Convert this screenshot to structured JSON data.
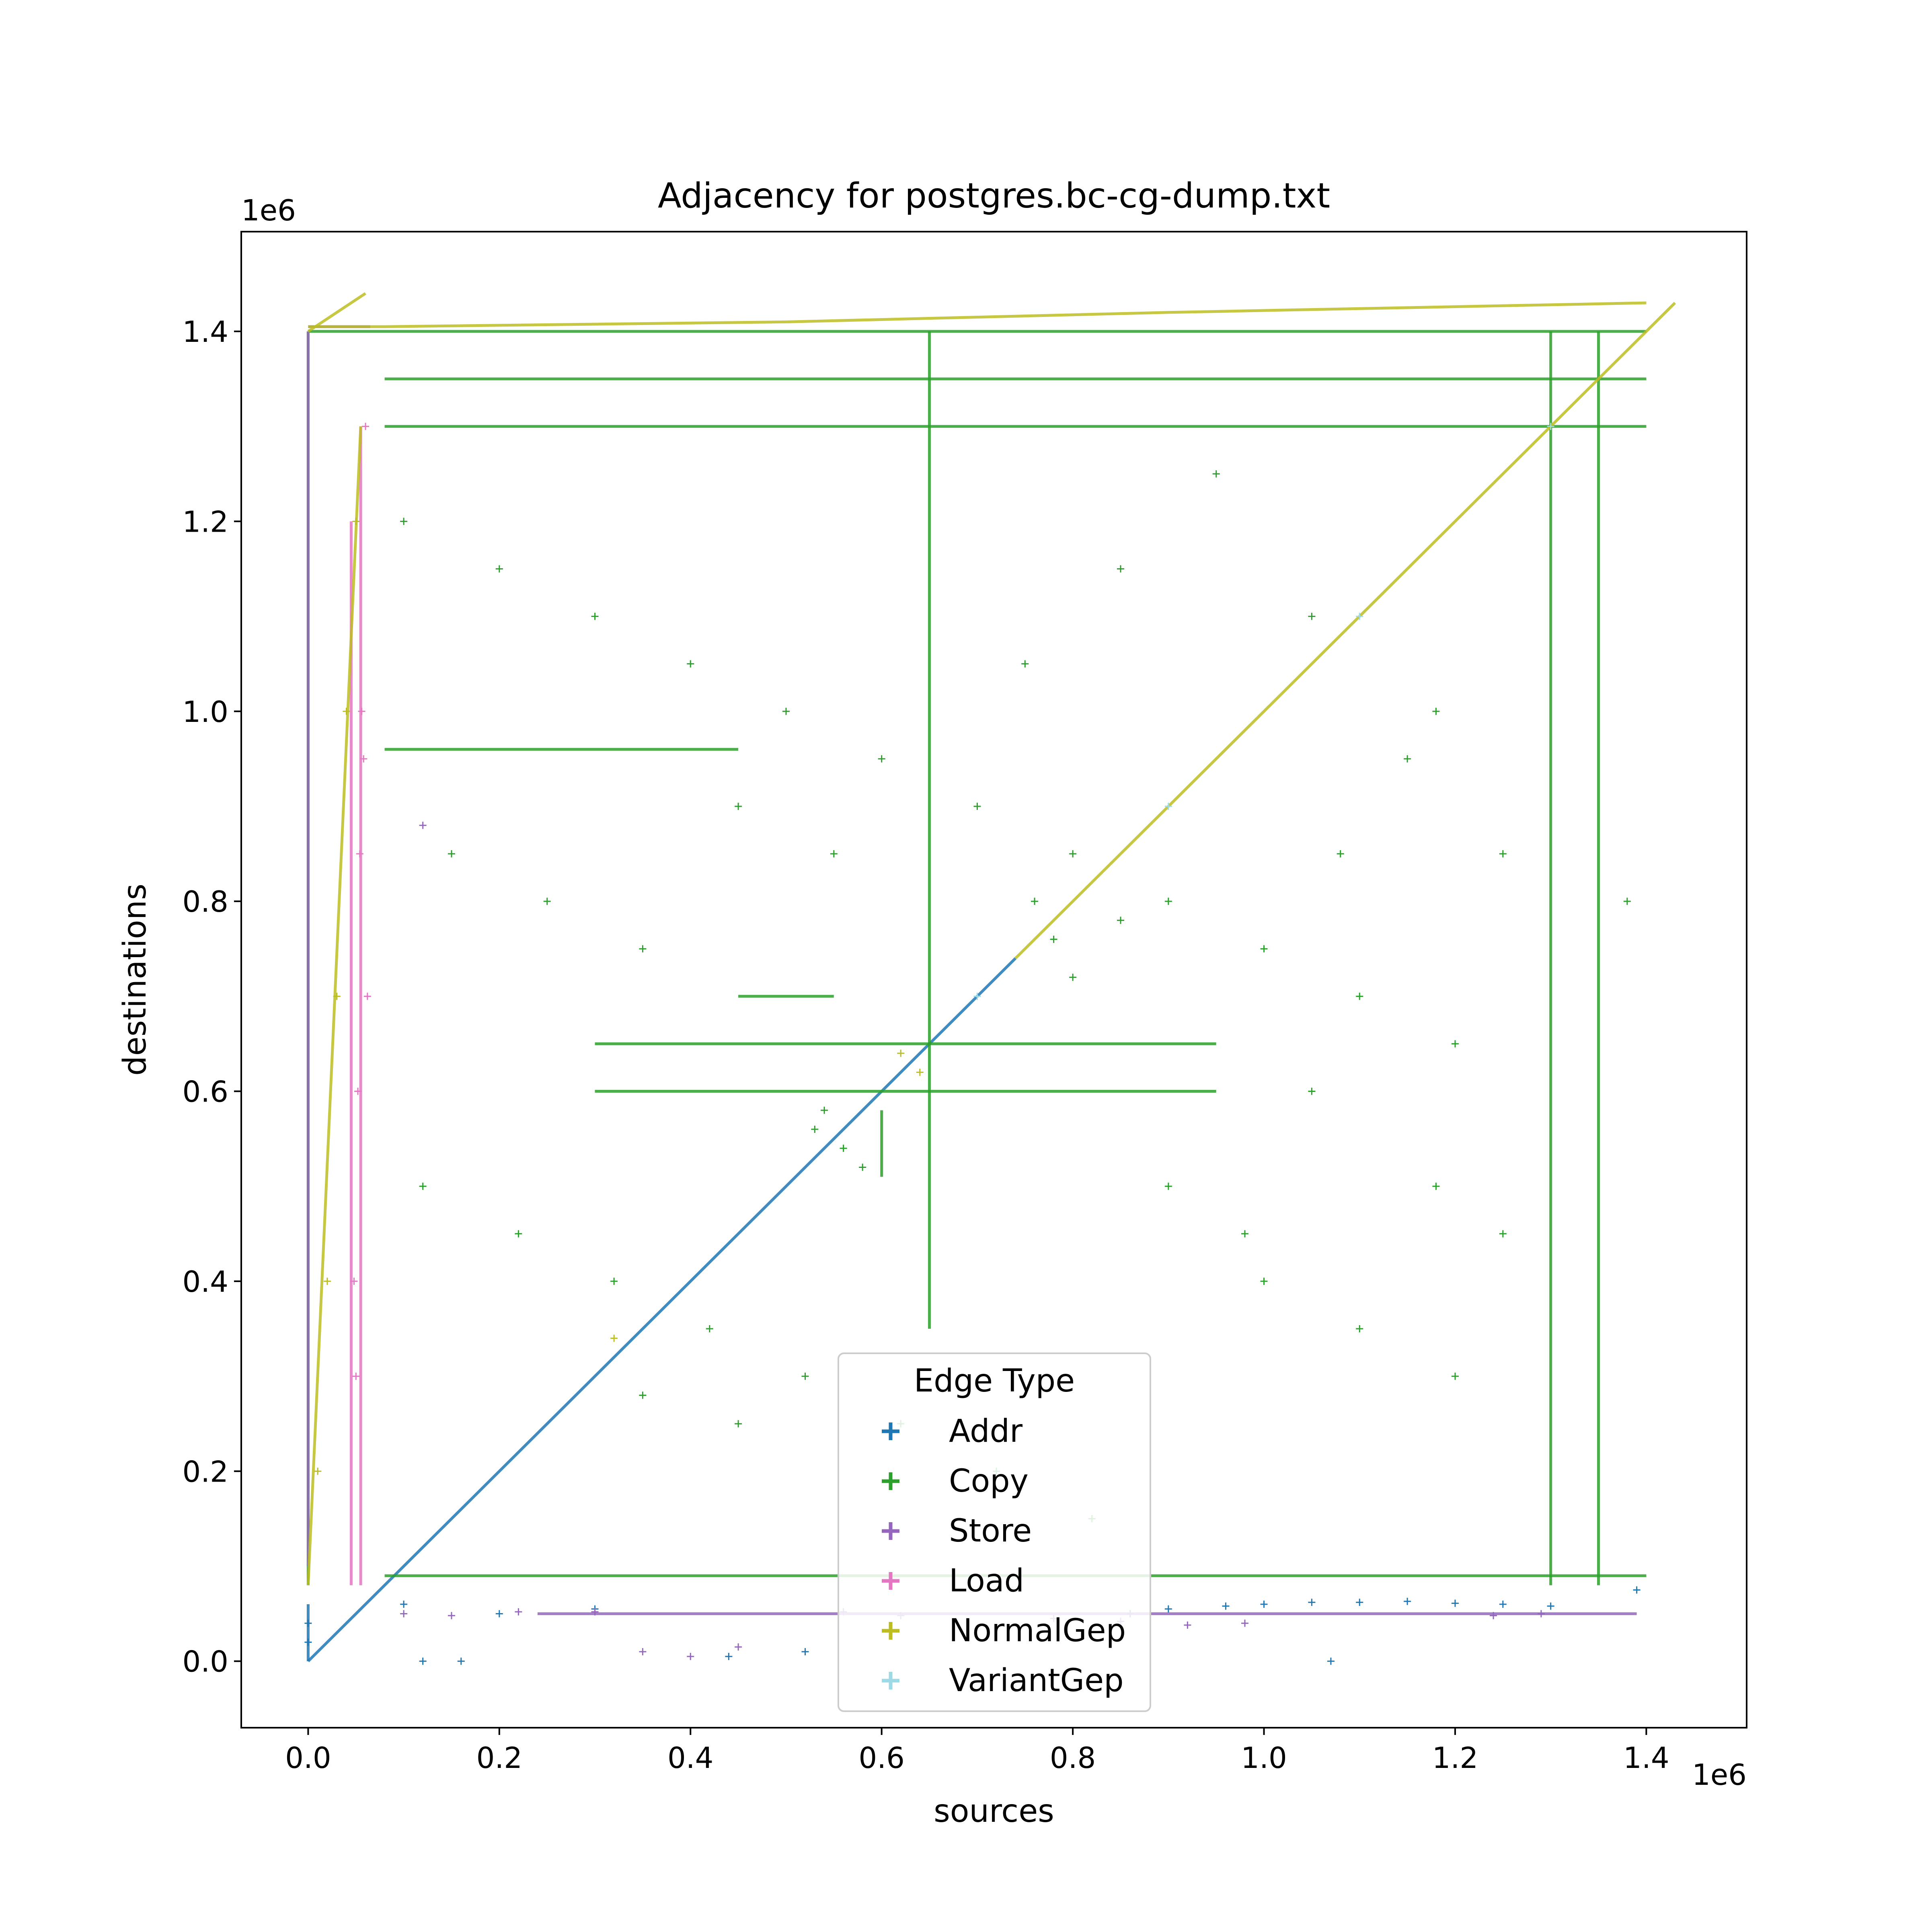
{
  "chart_data": {
    "type": "scatter",
    "title": "Adjacency for postgres.bc-cg-dump.txt",
    "xlabel": "sources",
    "ylabel": "destinations",
    "x_offset_label": "1e6",
    "y_offset_label": "1e6",
    "xlim": [
      -70000,
      1505000
    ],
    "ylim": [
      -70000,
      1505000
    ],
    "x_ticks": [
      0,
      200000,
      400000,
      600000,
      800000,
      1000000,
      1200000,
      1400000
    ],
    "y_ticks": [
      0,
      200000,
      400000,
      600000,
      800000,
      1000000,
      1200000,
      1400000
    ],
    "x_tick_labels": [
      "0.0",
      "0.2",
      "0.4",
      "0.6",
      "0.8",
      "1.0",
      "1.2",
      "1.4"
    ],
    "y_tick_labels": [
      "0.0",
      "0.2",
      "0.4",
      "0.6",
      "0.8",
      "1.0",
      "1.2",
      "1.4"
    ],
    "grid": false,
    "legend": {
      "title": "Edge Type",
      "placement": "lower-center",
      "entries": [
        "Addr",
        "Copy",
        "Store",
        "Load",
        "NormalGep",
        "VariantGep"
      ]
    },
    "series": [
      {
        "name": "Addr",
        "color": "#1f77b4",
        "lines": [
          [
            [
              0,
              0
            ],
            [
              740000,
              740000
            ]
          ],
          [
            [
              0,
              0
            ],
            [
              0,
              60000
            ]
          ]
        ],
        "points": [
          [
            0,
            20000
          ],
          [
            0,
            40000
          ],
          [
            100000,
            60000
          ],
          [
            200000,
            50000
          ],
          [
            300000,
            55000
          ],
          [
            120000,
            0
          ],
          [
            160000,
            0
          ],
          [
            440000,
            5000
          ],
          [
            520000,
            10000
          ],
          [
            1000000,
            60000
          ],
          [
            1050000,
            62000
          ],
          [
            1100000,
            62000
          ],
          [
            1150000,
            63000
          ],
          [
            1200000,
            61000
          ],
          [
            1250000,
            60000
          ],
          [
            1300000,
            58000
          ],
          [
            1390000,
            75000
          ],
          [
            900000,
            55000
          ],
          [
            960000,
            58000
          ],
          [
            1070000,
            0
          ],
          [
            860000,
            50000
          ]
        ]
      },
      {
        "name": "Copy",
        "color": "#2ca02c",
        "lines": [
          [
            [
              0,
              1400000
            ],
            [
              1400000,
              1400000
            ]
          ],
          [
            [
              80000,
              1350000
            ],
            [
              1400000,
              1350000
            ]
          ],
          [
            [
              80000,
              1300000
            ],
            [
              1400000,
              1300000
            ]
          ],
          [
            [
              300000,
              650000
            ],
            [
              950000,
              650000
            ]
          ],
          [
            [
              300000,
              600000
            ],
            [
              950000,
              600000
            ]
          ],
          [
            [
              1350000,
              80000
            ],
            [
              1350000,
              1400000
            ]
          ],
          [
            [
              1300000,
              80000
            ],
            [
              1300000,
              1400000
            ]
          ],
          [
            [
              650000,
              350000
            ],
            [
              650000,
              1400000
            ]
          ],
          [
            [
              80000,
              90000
            ],
            [
              1400000,
              90000
            ]
          ],
          [
            [
              0,
              80000
            ],
            [
              0,
              1400000
            ]
          ],
          [
            [
              80000,
              960000
            ],
            [
              450000,
              960000
            ]
          ],
          [
            [
              450000,
              700000
            ],
            [
              550000,
              700000
            ]
          ],
          [
            [
              600000,
              510000
            ],
            [
              600000,
              580000
            ]
          ]
        ],
        "points": [
          [
            100000,
            1200000
          ],
          [
            200000,
            1150000
          ],
          [
            300000,
            1100000
          ],
          [
            400000,
            1050000
          ],
          [
            500000,
            1000000
          ],
          [
            600000,
            950000
          ],
          [
            700000,
            900000
          ],
          [
            800000,
            850000
          ],
          [
            900000,
            800000
          ],
          [
            1000000,
            750000
          ],
          [
            1100000,
            700000
          ],
          [
            1200000,
            650000
          ],
          [
            120000,
            500000
          ],
          [
            220000,
            450000
          ],
          [
            320000,
            400000
          ],
          [
            420000,
            350000
          ],
          [
            520000,
            300000
          ],
          [
            620000,
            250000
          ],
          [
            720000,
            200000
          ],
          [
            820000,
            150000
          ],
          [
            150000,
            850000
          ],
          [
            250000,
            800000
          ],
          [
            350000,
            750000
          ],
          [
            450000,
            900000
          ],
          [
            550000,
            850000
          ],
          [
            750000,
            1050000
          ],
          [
            850000,
            1150000
          ],
          [
            950000,
            1250000
          ],
          [
            1050000,
            1100000
          ],
          [
            1150000,
            950000
          ],
          [
            1250000,
            850000
          ],
          [
            1380000,
            800000
          ],
          [
            780000,
            760000
          ],
          [
            800000,
            720000
          ],
          [
            850000,
            780000
          ],
          [
            760000,
            800000
          ],
          [
            530000,
            560000
          ],
          [
            560000,
            540000
          ],
          [
            540000,
            580000
          ],
          [
            580000,
            520000
          ],
          [
            350000,
            280000
          ],
          [
            450000,
            250000
          ],
          [
            1000000,
            400000
          ],
          [
            1100000,
            350000
          ],
          [
            1200000,
            300000
          ],
          [
            1250000,
            450000
          ],
          [
            1180000,
            500000
          ],
          [
            1050000,
            600000
          ],
          [
            900000,
            500000
          ],
          [
            980000,
            450000
          ],
          [
            1080000,
            850000
          ],
          [
            1180000,
            1000000
          ]
        ]
      },
      {
        "name": "Store",
        "color": "#9467bd",
        "lines": [
          [
            [
              0,
              1405000
            ],
            [
              65000,
              1405000
            ]
          ],
          [
            [
              0,
              100000
            ],
            [
              0,
              1400000
            ]
          ],
          [
            [
              240000,
              50000
            ],
            [
              1390000,
              50000
            ]
          ]
        ],
        "points": [
          [
            100000,
            50000
          ],
          [
            150000,
            48000
          ],
          [
            220000,
            52000
          ],
          [
            300000,
            52000
          ],
          [
            350000,
            10000
          ],
          [
            400000,
            5000
          ],
          [
            450000,
            15000
          ],
          [
            560000,
            52000
          ],
          [
            620000,
            48000
          ],
          [
            780000,
            45000
          ],
          [
            850000,
            42000
          ],
          [
            920000,
            38000
          ],
          [
            980000,
            40000
          ],
          [
            1240000,
            48000
          ],
          [
            1290000,
            50000
          ],
          [
            120000,
            880000
          ]
        ]
      },
      {
        "name": "Load",
        "color": "#e377c2",
        "lines": [
          [
            [
              55000,
              80000
            ],
            [
              55000,
              1300000
            ]
          ],
          [
            [
              45000,
              80000
            ],
            [
              45000,
              1200000
            ]
          ]
        ],
        "points": [
          [
            50000,
            300000
          ],
          [
            52000,
            600000
          ],
          [
            54000,
            850000
          ],
          [
            56000,
            1000000
          ],
          [
            48000,
            400000
          ],
          [
            58000,
            950000
          ],
          [
            60000,
            1300000
          ],
          [
            62000,
            700000
          ]
        ]
      },
      {
        "name": "NormalGep",
        "color": "#bcbd22",
        "lines": [
          [
            [
              0,
              80000
            ],
            [
              55000,
              1300000
            ]
          ],
          [
            [
              0,
              1405000
            ],
            [
              80000,
              1405000
            ],
            [
              500000,
              1410000
            ],
            [
              900000,
              1420000
            ],
            [
              1400000,
              1430000
            ]
          ],
          [
            [
              0,
              1400000
            ],
            [
              60000,
              1440000
            ]
          ],
          [
            [
              740000,
              740000
            ],
            [
              1430000,
              1430000
            ]
          ]
        ],
        "points": [
          [
            10000,
            200000
          ],
          [
            20000,
            400000
          ],
          [
            30000,
            700000
          ],
          [
            40000,
            1000000
          ],
          [
            50000,
            1200000
          ],
          [
            320000,
            340000
          ],
          [
            620000,
            640000
          ],
          [
            640000,
            620000
          ]
        ]
      },
      {
        "name": "VariantGep",
        "color": "#9edae5",
        "lines": [],
        "points": [
          [
            700000,
            700000
          ],
          [
            900000,
            900000
          ],
          [
            1100000,
            1100000
          ],
          [
            1300000,
            1300000
          ]
        ]
      }
    ]
  }
}
